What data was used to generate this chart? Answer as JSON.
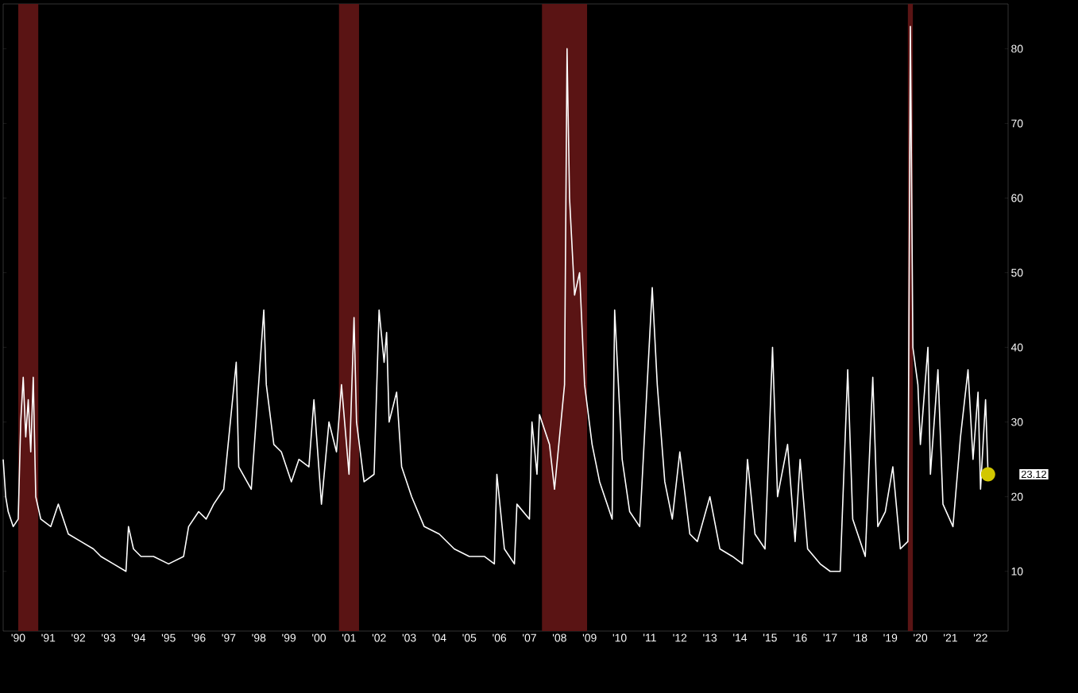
{
  "chart_data": {
    "type": "line",
    "line_style": "solid",
    "grid": false,
    "xlim": [
      "1990-01",
      "2023-06"
    ],
    "ylim": [
      2,
      86
    ],
    "yticks": [
      10,
      20,
      30,
      40,
      50,
      60,
      70,
      80
    ],
    "xticks": [
      {
        "value": "1990-07",
        "label": "'90"
      },
      {
        "value": "1991-07",
        "label": "'91"
      },
      {
        "value": "1992-07",
        "label": "'92"
      },
      {
        "value": "1993-07",
        "label": "'93"
      },
      {
        "value": "1994-07",
        "label": "'94"
      },
      {
        "value": "1995-07",
        "label": "'95"
      },
      {
        "value": "1996-07",
        "label": "'96"
      },
      {
        "value": "1997-07",
        "label": "'97"
      },
      {
        "value": "1998-07",
        "label": "'98"
      },
      {
        "value": "1999-07",
        "label": "'99"
      },
      {
        "value": "2000-07",
        "label": "'00"
      },
      {
        "value": "2001-07",
        "label": "'01"
      },
      {
        "value": "2002-07",
        "label": "'02"
      },
      {
        "value": "2003-07",
        "label": "'03"
      },
      {
        "value": "2004-07",
        "label": "'04"
      },
      {
        "value": "2005-07",
        "label": "'05"
      },
      {
        "value": "2006-07",
        "label": "'06"
      },
      {
        "value": "2007-07",
        "label": "'07"
      },
      {
        "value": "2008-07",
        "label": "'08"
      },
      {
        "value": "2009-07",
        "label": "'09"
      },
      {
        "value": "2010-07",
        "label": "'10"
      },
      {
        "value": "2011-07",
        "label": "'11"
      },
      {
        "value": "2012-07",
        "label": "'12"
      },
      {
        "value": "2013-07",
        "label": "'13"
      },
      {
        "value": "2014-07",
        "label": "'14"
      },
      {
        "value": "2015-07",
        "label": "'15"
      },
      {
        "value": "2016-07",
        "label": "'16"
      },
      {
        "value": "2017-07",
        "label": "'17"
      },
      {
        "value": "2018-07",
        "label": "'18"
      },
      {
        "value": "2019-07",
        "label": "'19"
      },
      {
        "value": "2020-07",
        "label": "'20"
      },
      {
        "value": "2021-07",
        "label": "'21"
      },
      {
        "value": "2022-07",
        "label": "'22"
      }
    ],
    "bands": [
      {
        "axis": "x",
        "from": "1990-07",
        "to": "1991-03",
        "color": "#5a1414"
      },
      {
        "axis": "x",
        "from": "2001-03",
        "to": "2001-11",
        "color": "#5a1414"
      },
      {
        "axis": "x",
        "from": "2007-12",
        "to": "2009-06",
        "color": "#5a1414"
      },
      {
        "axis": "x",
        "from": "2020-02",
        "to": "2020-04",
        "color": "#5a1414"
      }
    ],
    "annotations": [
      "23.12"
    ],
    "series": [
      {
        "color": "#ffffff",
        "x": [
          "1990-01",
          "1990-02",
          "1990-03",
          "1990-05",
          "1990-07",
          "1990-08",
          "1990-09",
          "1990-10",
          "1990-11",
          "1990-12",
          "1991-01",
          "1991-02",
          "1991-04",
          "1991-08",
          "1991-11",
          "1992-03",
          "1992-08",
          "1993-01",
          "1993-04",
          "1993-09",
          "1994-02",
          "1994-03",
          "1994-05",
          "1994-08",
          "1995-01",
          "1995-07",
          "1996-01",
          "1996-03",
          "1996-07",
          "1996-10",
          "1997-01",
          "1997-05",
          "1997-10",
          "1997-11",
          "1998-04",
          "1998-09",
          "1998-10",
          "1999-01",
          "1999-04",
          "1999-08",
          "1999-11",
          "2000-03",
          "2000-05",
          "2000-08",
          "2000-11",
          "2001-02",
          "2001-04",
          "2001-07",
          "2001-09",
          "2001-10",
          "2002-01",
          "2002-05",
          "2002-07",
          "2002-09",
          "2002-10",
          "2002-11",
          "2003-02",
          "2003-04",
          "2003-08",
          "2004-01",
          "2004-07",
          "2005-01",
          "2005-07",
          "2006-01",
          "2006-05",
          "2006-06",
          "2006-09",
          "2007-01",
          "2007-02",
          "2007-07",
          "2007-08",
          "2007-10",
          "2007-11",
          "2008-03",
          "2008-05",
          "2008-09",
          "2008-10",
          "2008-11",
          "2009-01",
          "2009-03",
          "2009-05",
          "2009-08",
          "2009-11",
          "2010-04",
          "2010-05",
          "2010-08",
          "2010-11",
          "2011-03",
          "2011-08",
          "2011-10",
          "2012-01",
          "2012-04",
          "2012-07",
          "2012-11",
          "2013-02",
          "2013-07",
          "2013-11",
          "2014-04",
          "2014-08",
          "2014-10",
          "2015-01",
          "2015-05",
          "2015-08",
          "2015-10",
          "2016-02",
          "2016-05",
          "2016-07",
          "2016-10",
          "2017-03",
          "2017-07",
          "2017-11",
          "2018-02",
          "2018-04",
          "2018-09",
          "2018-12",
          "2019-02",
          "2019-05",
          "2019-08",
          "2019-11",
          "2020-02",
          "2020-03",
          "2020-04",
          "2020-06",
          "2020-07",
          "2020-10",
          "2020-11",
          "2021-02",
          "2021-04",
          "2021-08",
          "2021-11",
          "2022-02",
          "2022-04",
          "2022-06",
          "2022-07",
          "2022-09",
          "2022-10"
        ],
        "values": [
          25,
          20,
          18,
          16,
          17,
          30,
          36,
          28,
          33,
          26,
          36,
          20,
          17,
          16,
          19,
          15,
          14,
          13,
          12,
          11,
          10,
          16,
          13,
          12,
          12,
          11,
          12,
          16,
          18,
          17,
          19,
          21,
          38,
          24,
          21,
          45,
          35,
          27,
          26,
          22,
          25,
          24,
          33,
          19,
          30,
          26,
          35,
          23,
          44,
          30,
          22,
          23,
          45,
          38,
          42,
          30,
          34,
          24,
          20,
          16,
          15,
          13,
          12,
          12,
          11,
          23,
          13,
          11,
          19,
          17,
          30,
          23,
          31,
          27,
          21,
          35,
          80,
          60,
          47,
          50,
          35,
          27,
          22,
          17,
          45,
          25,
          18,
          16,
          48,
          35,
          22,
          17,
          26,
          15,
          14,
          20,
          13,
          12,
          11,
          25,
          15,
          13,
          40,
          20,
          27,
          14,
          25,
          13,
          11,
          10,
          10,
          37,
          17,
          12,
          36,
          16,
          18,
          24,
          13,
          14,
          83,
          40,
          35,
          27,
          40,
          23,
          37,
          19,
          16,
          28,
          37,
          25,
          34,
          21,
          33,
          23
        ]
      }
    ]
  }
}
